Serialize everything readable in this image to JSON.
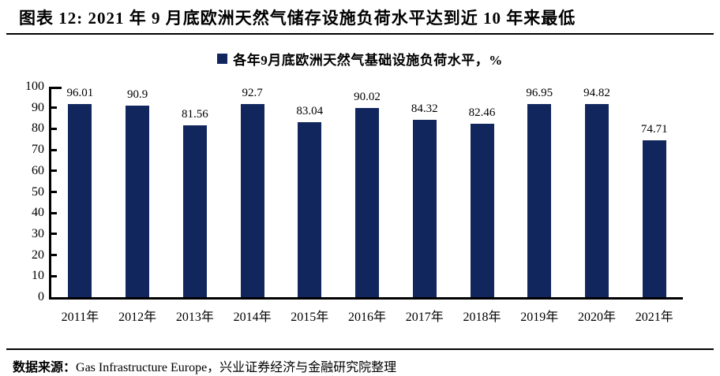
{
  "header": {
    "title": "图表 12: 2021 年 9 月底欧洲天然气储存设施负荷水平达到近 10 年来最低"
  },
  "legend": {
    "label": "各年9月底欧洲天然气基础设施负荷水平，%",
    "marker_color": "#12265E"
  },
  "chart_data": {
    "type": "bar",
    "title": "各年9月底欧洲天然气基础设施负荷水平，%",
    "categories": [
      "2011年",
      "2012年",
      "2013年",
      "2014年",
      "2015年",
      "2016年",
      "2017年",
      "2018年",
      "2019年",
      "2020年",
      "2021年"
    ],
    "values": [
      96.01,
      90.9,
      81.56,
      92.7,
      83.04,
      90.02,
      84.32,
      82.46,
      96.95,
      94.82,
      74.71
    ],
    "value_labels": [
      "96.01",
      "90.9",
      "81.56",
      "92.7",
      "83.04",
      "90.02",
      "84.32",
      "82.46",
      "96.95",
      "94.82",
      "74.71"
    ],
    "xlabel": "",
    "ylabel": "",
    "ylim": [
      0,
      100
    ],
    "yticks": [
      0,
      10,
      20,
      30,
      40,
      50,
      60,
      70,
      80,
      90,
      100
    ],
    "bar_color": "#12265E",
    "label_color": "#000000",
    "axis_color": "#000000",
    "grid": false,
    "legend_position": "top-center"
  },
  "footer": {
    "source_label": "数据来源：",
    "source_text": "Gas Infrastructure Europe，兴业证券经济与金融研究院整理"
  }
}
